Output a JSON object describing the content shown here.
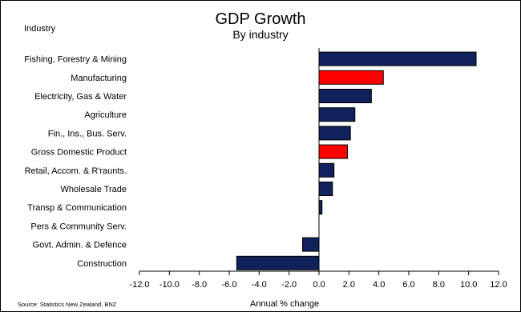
{
  "chart_data": {
    "type": "bar",
    "orientation": "horizontal",
    "title": "GDP Growth",
    "subtitle": "By industry",
    "category_header": "Industry",
    "xlabel": "Annual % change",
    "source": "Source: Statistics New Zealand, BNZ",
    "xlim": [
      -12.0,
      12.0
    ],
    "xticks": [
      "-12.0",
      "-10.0",
      "-8.0",
      "-6.0",
      "-4.0",
      "-2.0",
      "0.0",
      "2.0",
      "4.0",
      "6.0",
      "8.0",
      "10.0",
      "12.0"
    ],
    "categories": [
      "Fishing, Forestry & Mining",
      "Manufacturing",
      "Electricity, Gas & Water",
      "Agriculture",
      "Fin., Ins., Bus. Serv.",
      "Gross Domestic Product",
      "Retail, Accom. & R'raunts.",
      "Wholesale Trade",
      "Transp & Communication",
      "Pers & Community Serv.",
      "Govt. Admin. & Defence",
      "Construction"
    ],
    "values": [
      10.5,
      4.3,
      3.5,
      2.4,
      2.1,
      1.9,
      1.0,
      0.9,
      0.2,
      0.0,
      -1.1,
      -5.5
    ],
    "highlight": [
      "Manufacturing",
      "Gross Domestic Product"
    ],
    "colors": {
      "bar": "#10215b",
      "highlight": "#ff0000",
      "outline": "#000000"
    },
    "grid": false,
    "legend": "none"
  }
}
